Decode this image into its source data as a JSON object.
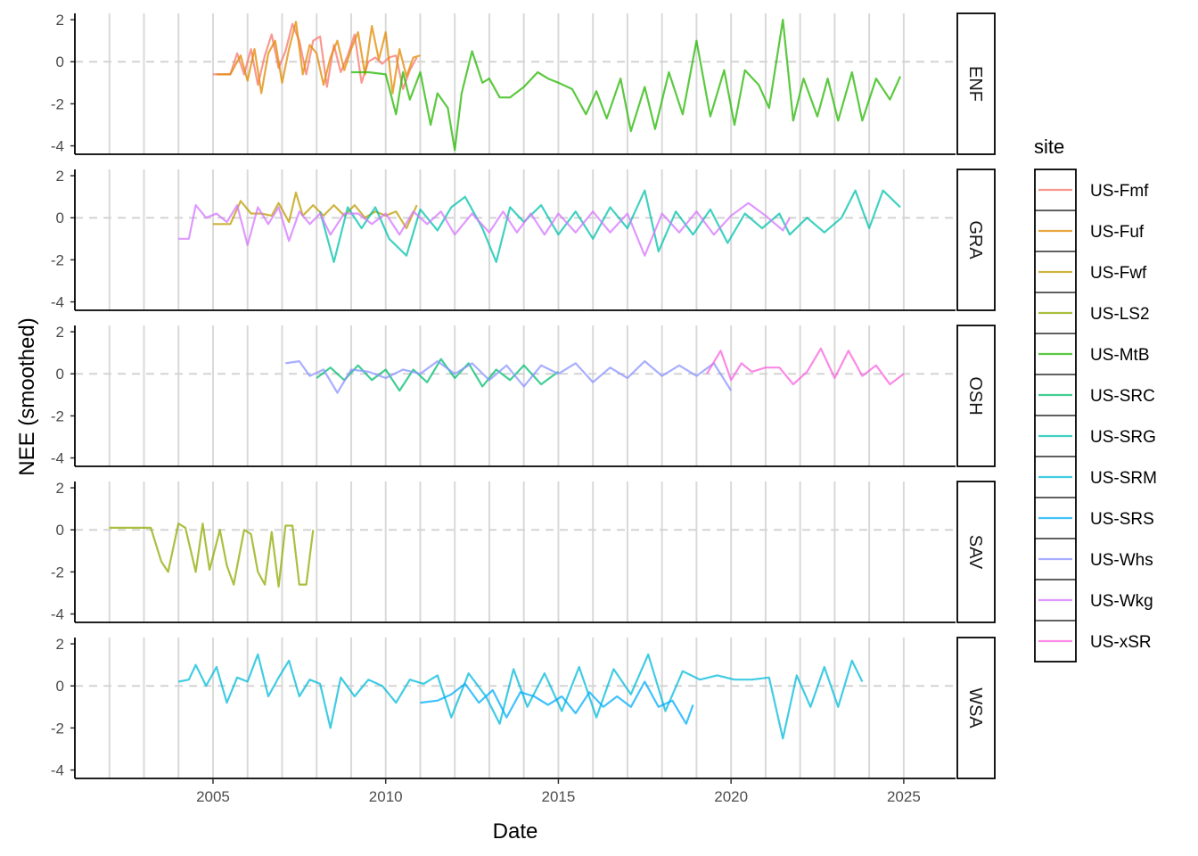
{
  "chart_data": {
    "type": "line",
    "xlabel": "Date",
    "ylabel": "NEE (smoothed)",
    "legend_title": "site",
    "legend_position": "right",
    "facet_by": "ecosystem",
    "x_axis": {
      "type": "date",
      "range": [
        "2001-01-01",
        "2026-07-01"
      ],
      "tick_labels": [
        "2005",
        "2010",
        "2015",
        "2020",
        "2025"
      ],
      "tick_values": [
        2005,
        2010,
        2015,
        2020,
        2025
      ]
    },
    "y_axis": {
      "range": [
        -4.4,
        2.3
      ],
      "tick_labels": [
        "2",
        "0",
        "-2",
        "-4"
      ],
      "tick_values": [
        2,
        0,
        -2,
        -4
      ]
    },
    "reference_line": {
      "y": 0,
      "style": "dashed"
    },
    "vertical_gridlines_years": [
      2002,
      2003,
      2004,
      2005,
      2006,
      2007,
      2008,
      2009,
      2010,
      2011,
      2012,
      2013,
      2014,
      2015,
      2016,
      2017,
      2018,
      2019,
      2020,
      2021,
      2022,
      2023,
      2024,
      2025
    ],
    "panels": [
      "ENF",
      "GRA",
      "OSH",
      "SAV",
      "WSA"
    ],
    "sites": [
      {
        "name": "US-Fmf",
        "color": "#F8766D"
      },
      {
        "name": "US-Fuf",
        "color": "#E18A00"
      },
      {
        "name": "US-Fwf",
        "color": "#BE9C00"
      },
      {
        "name": "US-LS2",
        "color": "#8CAB00"
      },
      {
        "name": "US-MtB",
        "color": "#24B700"
      },
      {
        "name": "US-SRC",
        "color": "#00BE70"
      },
      {
        "name": "US-SRG",
        "color": "#00C1AB"
      },
      {
        "name": "US-SRM",
        "color": "#00BBDA"
      },
      {
        "name": "US-SRS",
        "color": "#00ACFC"
      },
      {
        "name": "US-Whs",
        "color": "#8B93FF"
      },
      {
        "name": "US-Wkg",
        "color": "#D575FE"
      },
      {
        "name": "US-xSR",
        "color": "#F962DD"
      }
    ],
    "series": [
      {
        "name": "US-Fmf",
        "panel": "ENF",
        "x": [
          2005.0,
          2005.5,
          2005.7,
          2005.9,
          2006.1,
          2006.3,
          2006.5,
          2006.7,
          2006.9,
          2007.1,
          2007.3,
          2007.5,
          2007.7,
          2007.9,
          2008.1,
          2008.3,
          2008.5,
          2008.7,
          2008.9,
          2009.1,
          2009.3,
          2009.5,
          2009.7,
          2009.9,
          2010.1,
          2010.3,
          2010.5,
          2010.7,
          2010.9
        ],
        "y": [
          -0.6,
          -0.6,
          0.4,
          -0.6,
          0.6,
          -1.1,
          0.3,
          1.3,
          -0.3,
          0.5,
          1.8,
          1.0,
          -0.6,
          1.0,
          1.2,
          -1.2,
          0.8,
          -0.5,
          0.3,
          1.3,
          -1.0,
          0.0,
          0.2,
          -0.1,
          0.2,
          0.3,
          -1.3,
          -0.4,
          0.2
        ]
      },
      {
        "name": "US-Fuf",
        "panel": "ENF",
        "x": [
          2005.1,
          2005.5,
          2005.8,
          2006.0,
          2006.2,
          2006.4,
          2006.6,
          2006.8,
          2007.0,
          2007.2,
          2007.4,
          2007.6,
          2007.8,
          2008.0,
          2008.2,
          2008.4,
          2008.6,
          2008.8,
          2009.0,
          2009.2,
          2009.4,
          2009.6,
          2009.8,
          2010.0,
          2010.2,
          2010.4,
          2010.6,
          2010.8,
          2011.0
        ],
        "y": [
          -0.6,
          -0.6,
          0.3,
          -0.9,
          0.6,
          -1.5,
          0.4,
          1.0,
          -1.0,
          0.6,
          1.9,
          -0.6,
          0.8,
          0.4,
          -1.1,
          0.2,
          1.0,
          -0.4,
          0.6,
          1.4,
          -0.6,
          1.7,
          0.1,
          1.4,
          -1.5,
          0.6,
          -0.7,
          0.2,
          0.3
        ]
      },
      {
        "name": "US-MtB",
        "panel": "ENF",
        "x": [
          2009.0,
          2009.5,
          2010.0,
          2010.3,
          2010.5,
          2010.7,
          2011.0,
          2011.3,
          2011.5,
          2011.8,
          2012.0,
          2012.2,
          2012.5,
          2012.8,
          2013.0,
          2013.3,
          2013.6,
          2014.0,
          2014.4,
          2014.7,
          2015.0,
          2015.4,
          2015.8,
          2016.1,
          2016.4,
          2016.8,
          2017.1,
          2017.5,
          2017.8,
          2018.2,
          2018.6,
          2019.0,
          2019.4,
          2019.8,
          2020.1,
          2020.4,
          2020.8,
          2021.1,
          2021.5,
          2021.8,
          2022.1,
          2022.5,
          2022.8,
          2023.1,
          2023.5,
          2023.8,
          2024.2,
          2024.6,
          2024.9
        ],
        "y": [
          -0.5,
          -0.5,
          -0.6,
          -2.5,
          -0.5,
          -1.8,
          -0.5,
          -3.0,
          -1.5,
          -2.2,
          -4.2,
          -1.5,
          0.5,
          -1.0,
          -0.8,
          -1.7,
          -1.7,
          -1.2,
          -0.5,
          -0.8,
          -1.0,
          -1.3,
          -2.5,
          -1.4,
          -2.7,
          -0.8,
          -3.3,
          -1.2,
          -3.2,
          -0.5,
          -2.5,
          1.0,
          -2.6,
          -0.4,
          -3.0,
          -0.4,
          -1.1,
          -2.2,
          2.0,
          -2.8,
          -0.8,
          -2.6,
          -0.8,
          -2.8,
          -0.5,
          -2.8,
          -0.8,
          -1.8,
          -0.7
        ]
      },
      {
        "name": "US-Fwf",
        "panel": "GRA",
        "x": [
          2005.0,
          2005.5,
          2005.8,
          2006.1,
          2006.4,
          2006.7,
          2006.9,
          2007.2,
          2007.4,
          2007.6,
          2007.9,
          2008.2,
          2008.5,
          2008.8,
          2009.1,
          2009.4,
          2009.7,
          2010.0,
          2010.3,
          2010.6,
          2010.9
        ],
        "y": [
          -0.3,
          -0.3,
          0.8,
          0.2,
          0.2,
          0.1,
          0.7,
          -0.2,
          1.2,
          0.1,
          0.6,
          0.1,
          0.6,
          0.1,
          0.6,
          0.0,
          0.3,
          0.1,
          0.3,
          -0.5,
          0.6
        ]
      },
      {
        "name": "US-SRG",
        "panel": "GRA",
        "x": [
          2008.1,
          2008.5,
          2008.9,
          2009.3,
          2009.7,
          2010.1,
          2010.6,
          2011.0,
          2011.5,
          2011.9,
          2012.3,
          2012.8,
          2013.2,
          2013.6,
          2014.0,
          2014.5,
          2015.0,
          2015.5,
          2016.0,
          2016.5,
          2017.0,
          2017.5,
          2017.9,
          2018.4,
          2018.9,
          2019.4,
          2019.9,
          2020.4,
          2020.9,
          2021.4,
          2021.7,
          2022.2,
          2022.7,
          2023.2,
          2023.6,
          2024.0,
          2024.4,
          2024.9
        ],
        "y": [
          0.3,
          -2.1,
          0.5,
          -0.5,
          0.5,
          -1.0,
          -1.8,
          0.4,
          -0.6,
          0.5,
          1.0,
          -0.5,
          -2.1,
          0.5,
          -0.2,
          0.6,
          -0.8,
          0.3,
          -1.0,
          0.5,
          -0.5,
          1.3,
          -1.6,
          0.3,
          -0.8,
          0.4,
          -1.2,
          0.2,
          -0.5,
          0.2,
          -0.8,
          0.0,
          -0.7,
          0.0,
          1.3,
          -0.5,
          1.3,
          0.5
        ]
      },
      {
        "name": "US-Wkg",
        "panel": "GRA",
        "x": [
          2004.0,
          2004.3,
          2004.5,
          2004.8,
          2005.1,
          2005.4,
          2005.7,
          2006.0,
          2006.3,
          2006.6,
          2006.9,
          2007.2,
          2007.5,
          2007.8,
          2008.1,
          2008.4,
          2008.8,
          2009.2,
          2009.6,
          2010.0,
          2010.4,
          2010.8,
          2011.2,
          2011.6,
          2012.0,
          2012.5,
          2013.0,
          2013.4,
          2013.8,
          2014.2,
          2014.6,
          2015.0,
          2015.5,
          2016.0,
          2016.5,
          2017.0,
          2017.5,
          2018.0,
          2018.5,
          2019.0,
          2019.5,
          2020.0,
          2020.5,
          2021.0,
          2021.5,
          2021.7
        ],
        "y": [
          -1.0,
          -1.0,
          0.6,
          0.0,
          0.2,
          -0.2,
          0.6,
          -1.3,
          0.5,
          -0.3,
          0.5,
          -1.1,
          0.3,
          -0.3,
          0.2,
          -0.8,
          0.2,
          0.2,
          -0.3,
          0.2,
          -0.8,
          0.3,
          -0.3,
          0.3,
          -0.8,
          0.2,
          -0.7,
          0.3,
          -0.7,
          0.2,
          -0.8,
          0.2,
          -0.7,
          0.3,
          -0.7,
          0.2,
          -1.8,
          0.2,
          -0.7,
          0.3,
          -0.8,
          0.1,
          0.7,
          0.1,
          -0.6,
          0.0
        ]
      },
      {
        "name": "US-SRC",
        "panel": "OSH",
        "x": [
          2008.0,
          2008.4,
          2008.8,
          2009.2,
          2009.6,
          2010.0,
          2010.4,
          2010.8,
          2011.2,
          2011.6,
          2012.0,
          2012.4,
          2012.8,
          2013.2,
          2013.6,
          2014.0,
          2014.5,
          2015.0
        ],
        "y": [
          -0.2,
          0.3,
          -0.3,
          0.4,
          -0.3,
          0.2,
          -0.8,
          0.2,
          -0.4,
          0.7,
          -0.2,
          0.5,
          -0.6,
          0.2,
          -0.3,
          0.4,
          -0.5,
          0.1
        ]
      },
      {
        "name": "US-Whs",
        "panel": "OSH",
        "x": [
          2007.1,
          2007.5,
          2007.8,
          2008.2,
          2008.6,
          2009.0,
          2009.5,
          2010.0,
          2010.5,
          2011.0,
          2011.5,
          2012.0,
          2012.5,
          2013.0,
          2013.5,
          2014.0,
          2014.5,
          2015.0,
          2015.5,
          2016.0,
          2016.5,
          2017.0,
          2017.5,
          2018.0,
          2018.5,
          2019.0,
          2019.5,
          2020.0
        ],
        "y": [
          0.5,
          0.6,
          -0.1,
          0.2,
          -0.9,
          0.2,
          0.1,
          -0.2,
          0.2,
          0.0,
          0.6,
          0.0,
          0.5,
          -0.3,
          0.4,
          -0.6,
          0.4,
          0.0,
          0.5,
          -0.4,
          0.3,
          -0.2,
          0.6,
          -0.1,
          0.4,
          -0.1,
          0.5,
          -0.8
        ]
      },
      {
        "name": "US-xSR",
        "panel": "OSH",
        "x": [
          2019.3,
          2019.7,
          2020.0,
          2020.3,
          2020.6,
          2021.0,
          2021.4,
          2021.8,
          2022.2,
          2022.6,
          2023.0,
          2023.4,
          2023.8,
          2024.2,
          2024.6,
          2025.0
        ],
        "y": [
          0.0,
          1.1,
          -0.3,
          0.5,
          0.1,
          0.3,
          0.3,
          -0.5,
          0.1,
          1.2,
          -0.2,
          1.1,
          -0.1,
          0.4,
          -0.5,
          0.0
        ]
      },
      {
        "name": "US-LS2",
        "panel": "SAV",
        "x": [
          2002.0,
          2002.5,
          2003.0,
          2003.2,
          2003.5,
          2003.7,
          2004.0,
          2004.2,
          2004.5,
          2004.7,
          2004.9,
          2005.2,
          2005.4,
          2005.6,
          2005.9,
          2006.1,
          2006.3,
          2006.5,
          2006.7,
          2006.9,
          2007.1,
          2007.3,
          2007.5,
          2007.7,
          2007.9
        ],
        "y": [
          0.1,
          0.1,
          0.1,
          0.1,
          -1.5,
          -2.0,
          0.3,
          0.1,
          -2.0,
          0.3,
          -1.9,
          0.0,
          -1.7,
          -2.6,
          0.0,
          -0.2,
          -2.0,
          -2.6,
          -0.1,
          -2.7,
          0.2,
          0.2,
          -2.6,
          -2.6,
          0.0
        ]
      },
      {
        "name": "US-SRM",
        "panel": "WSA",
        "x": [
          2004.0,
          2004.3,
          2004.5,
          2004.8,
          2005.1,
          2005.4,
          2005.7,
          2006.0,
          2006.3,
          2006.6,
          2006.9,
          2007.2,
          2007.5,
          2007.8,
          2008.1,
          2008.4,
          2008.7,
          2009.1,
          2009.5,
          2009.9,
          2010.3,
          2010.7,
          2011.1,
          2011.5,
          2011.9,
          2012.4,
          2012.9,
          2013.3,
          2013.7,
          2014.1,
          2014.6,
          2015.1,
          2015.6,
          2016.1,
          2016.6,
          2017.1,
          2017.6,
          2018.1,
          2018.6,
          2019.1,
          2019.6,
          2020.1,
          2020.6,
          2021.1,
          2021.5,
          2021.9,
          2022.3,
          2022.7,
          2023.1,
          2023.5,
          2023.8
        ],
        "y": [
          0.2,
          0.3,
          1.0,
          0.0,
          0.9,
          -0.8,
          0.4,
          0.2,
          1.5,
          -0.5,
          0.4,
          1.2,
          -0.5,
          0.3,
          0.1,
          -2.0,
          0.4,
          -0.5,
          0.3,
          0.0,
          -0.8,
          0.3,
          0.1,
          0.5,
          -1.5,
          0.6,
          -0.5,
          -1.8,
          0.8,
          -1.0,
          0.6,
          -1.2,
          0.9,
          -1.5,
          0.8,
          -0.4,
          1.5,
          -1.2,
          0.7,
          0.3,
          0.5,
          0.3,
          0.3,
          0.4,
          -2.5,
          0.5,
          -1.0,
          0.9,
          -1.0,
          1.2,
          0.2
        ]
      },
      {
        "name": "US-SRS",
        "panel": "WSA",
        "x": [
          2011.0,
          2011.5,
          2011.9,
          2012.3,
          2012.7,
          2013.1,
          2013.5,
          2013.9,
          2014.3,
          2014.7,
          2015.1,
          2015.5,
          2015.9,
          2016.3,
          2016.7,
          2017.1,
          2017.5,
          2017.9,
          2018.3,
          2018.7,
          2018.9
        ],
        "y": [
          -0.8,
          -0.7,
          -0.4,
          0.1,
          -0.8,
          -0.2,
          -1.5,
          -0.3,
          -0.5,
          -0.9,
          -0.5,
          -1.3,
          -0.3,
          -1.0,
          -0.5,
          -1.0,
          0.2,
          -1.0,
          -0.7,
          -1.8,
          -0.9
        ]
      }
    ]
  }
}
